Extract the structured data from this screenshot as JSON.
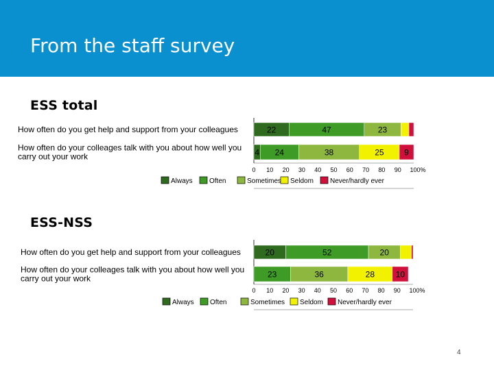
{
  "slide": {
    "title": "From the staff survey",
    "page_number": "4"
  },
  "colors": {
    "header_bg": "#0a8fcf",
    "Always": "#2e6b1f",
    "Often": "#3d9b26",
    "Sometimes": "#8db73f",
    "Seldom": "#f2f200",
    "Never/hardly ever": "#d0103a"
  },
  "chart_data": [
    {
      "type": "bar",
      "orientation": "horizontal",
      "stacked": true,
      "title": "ESS total",
      "categories": [
        "How often do you get help and support from your colleagues",
        "How often do your colleages talk with you about how well you carry out your work"
      ],
      "category_lines": [
        [
          "How often do you get help and support from your colleagues"
        ],
        [
          "How often do your colleages talk with you about how well you",
          "carry out your work"
        ]
      ],
      "series": [
        {
          "name": "Always",
          "values": [
            22,
            4
          ]
        },
        {
          "name": "Often",
          "values": [
            47,
            24
          ]
        },
        {
          "name": "Sometimes",
          "values": [
            23,
            38
          ]
        },
        {
          "name": "Seldom",
          "values": [
            5,
            25
          ]
        },
        {
          "name": "Never/hardly ever",
          "values": [
            3,
            9
          ]
        }
      ],
      "labels": [
        [
          "22",
          "47",
          "23",
          "",
          ""
        ],
        [
          "4",
          "24",
          "38",
          "25",
          "9"
        ]
      ],
      "xlim": [
        0,
        100
      ],
      "xticks": [
        "0",
        "10",
        "20",
        "30",
        "40",
        "50",
        "60",
        "70",
        "80",
        "90",
        "100%"
      ],
      "legend": "bottom"
    },
    {
      "type": "bar",
      "orientation": "horizontal",
      "stacked": true,
      "title": "ESS-NSS",
      "categories": [
        "How often do you get help and support from your colleagues",
        "How often do your colleages talk with you about how well you carry out your work"
      ],
      "category_lines": [
        [
          "How often do you get help and support from your colleagues"
        ],
        [
          "How often do your colleages talk with you about how well you",
          "carry out your work"
        ]
      ],
      "series": [
        {
          "name": "Always",
          "values": [
            20,
            0
          ]
        },
        {
          "name": "Often",
          "values": [
            52,
            23
          ]
        },
        {
          "name": "Sometimes",
          "values": [
            20,
            36
          ]
        },
        {
          "name": "Seldom",
          "values": [
            7,
            28
          ]
        },
        {
          "name": "Never/hardly ever",
          "values": [
            1,
            10
          ]
        }
      ],
      "labels": [
        [
          "20",
          "52",
          "20",
          "",
          ""
        ],
        [
          "",
          "23",
          "36",
          "28",
          "10"
        ]
      ],
      "xlim": [
        0,
        100
      ],
      "xticks": [
        "0",
        "10",
        "20",
        "30",
        "40",
        "50",
        "60",
        "70",
        "80",
        "90",
        "100%"
      ],
      "legend": "bottom"
    }
  ]
}
